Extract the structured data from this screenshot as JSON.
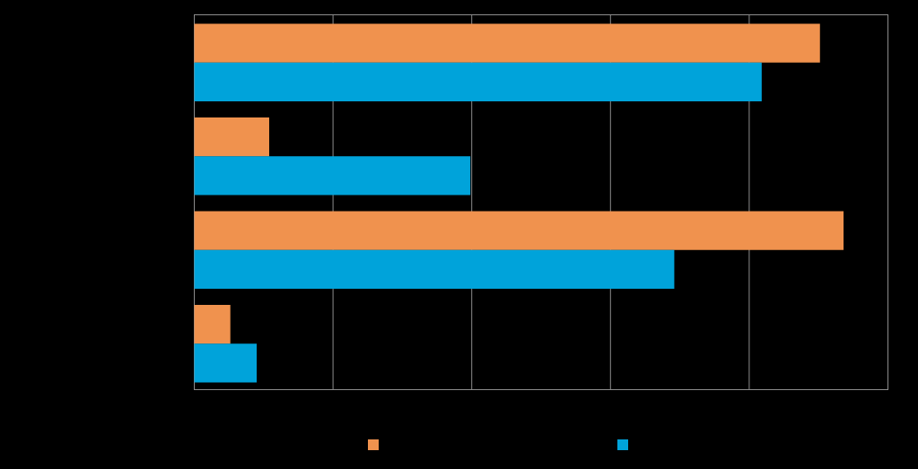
{
  "chart_data": {
    "type": "hbar",
    "categories": [
      null,
      null,
      null,
      null
    ],
    "series": [
      {
        "color": "#f0924e",
        "values": [
          4.51,
          0.54,
          4.68,
          0.26
        ]
      },
      {
        "color": "#00a3da",
        "values": [
          4.09,
          1.99,
          3.46,
          0.45
        ]
      }
    ],
    "xlim": [
      0,
      5
    ],
    "xticks": [
      0,
      1,
      2,
      3,
      4,
      5
    ],
    "grid": true
  }
}
